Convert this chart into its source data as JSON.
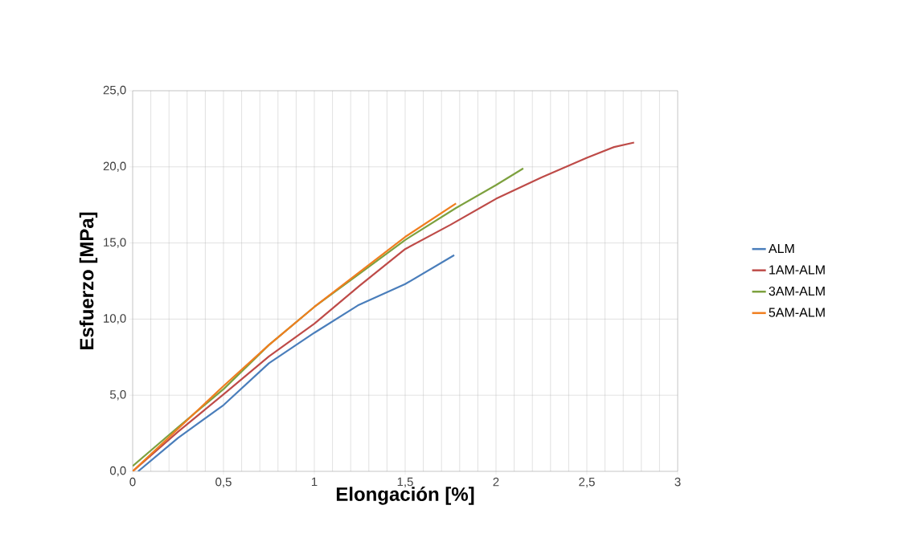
{
  "chart_data": {
    "type": "line",
    "xlabel": "Elongación [%]",
    "ylabel": "Esfuerzo [MPa]",
    "xlim": [
      0,
      3
    ],
    "ylim": [
      0,
      25
    ],
    "xticks": [
      0,
      {
        "value": 0.5,
        "label": "0,5"
      },
      1,
      {
        "value": 1.5,
        "label": "1,5"
      },
      2,
      {
        "value": 2.5,
        "label": "2,5"
      },
      3
    ],
    "yticks": [
      {
        "value": 0,
        "label": "0,0"
      },
      {
        "value": 5,
        "label": "5,0"
      },
      {
        "value": 10,
        "label": "10,0"
      },
      {
        "value": 15,
        "label": "15,0"
      },
      {
        "value": 20,
        "label": "20,0"
      },
      {
        "value": 25,
        "label": "25,0"
      }
    ],
    "grid": true,
    "legend": "right",
    "marker": "none",
    "line_style": "solid",
    "series": [
      {
        "name": "ALM",
        "color": "#4a7ebb",
        "x": [
          0.03,
          0.25,
          0.5,
          0.75,
          1.0,
          1.24,
          1.5,
          1.77
        ],
        "values": [
          0.0,
          2.2,
          4.35,
          7.1,
          9.1,
          10.9,
          12.3,
          14.2
        ]
      },
      {
        "name": "1AM-ALM",
        "color": "#be4b48",
        "x": [
          0.0,
          0.25,
          0.5,
          0.75,
          1.0,
          1.25,
          1.5,
          1.75,
          2.0,
          2.25,
          2.5,
          2.65,
          2.76
        ],
        "values": [
          0.0,
          2.6,
          5.06,
          7.55,
          9.7,
          12.2,
          14.6,
          16.2,
          17.9,
          19.3,
          20.6,
          21.3,
          21.6
        ]
      },
      {
        "name": "3AM-ALM",
        "color": "#7da13f",
        "x": [
          0.0,
          0.25,
          0.5,
          0.75,
          1.0,
          1.25,
          1.5,
          1.78,
          2.0,
          2.15
        ],
        "values": [
          0.35,
          2.9,
          5.4,
          8.3,
          10.8,
          13.0,
          15.2,
          17.3,
          18.8,
          19.9
        ]
      },
      {
        "name": "5AM-ALM",
        "color": "#f07e1f",
        "x": [
          0.0,
          0.25,
          0.5,
          0.75,
          1.0,
          1.25,
          1.5,
          1.78
        ],
        "values": [
          0.0,
          2.8,
          5.6,
          8.3,
          10.8,
          13.1,
          15.4,
          17.6
        ]
      }
    ]
  }
}
